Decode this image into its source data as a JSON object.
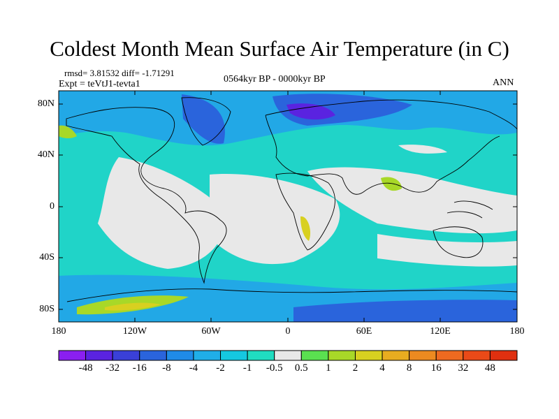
{
  "title": "Coldest Month Mean Surface Air Temperature (in C)",
  "stats": {
    "rmsd_diff": "rmsd= 3.81532 diff= -1.71291",
    "experiment": "Expt = teVtJ1-tevta1",
    "period": "0564kyr BP - 0000kyr BP",
    "season": "ANN"
  },
  "lat_ticks": [
    "80N",
    "40N",
    "0",
    "40S",
    "80S"
  ],
  "lon_ticks": [
    "180",
    "120W",
    "60W",
    "0",
    "60E",
    "120E",
    "180"
  ],
  "colorbar": {
    "labels": [
      "-48",
      "-32",
      "-16",
      "-8",
      "-4",
      "-2",
      "-1",
      "-0.5",
      "0.5",
      "1",
      "2",
      "4",
      "8",
      "16",
      "32",
      "48"
    ],
    "colors": [
      "#8a1ff0",
      "#5a23e0",
      "#3a40d8",
      "#2a64dc",
      "#1f8be8",
      "#20aee8",
      "#15c8e0",
      "#20dcc0",
      "#e8e8e8",
      "#5ae050",
      "#a8d828",
      "#d8d020",
      "#e8ac20",
      "#ec8a20",
      "#ee6a20",
      "#ea4a18",
      "#e03010"
    ]
  },
  "colors": {
    "background_fill": "#dcdcdc",
    "ocean_base": "#20d4c8",
    "coastline": "#000000"
  }
}
